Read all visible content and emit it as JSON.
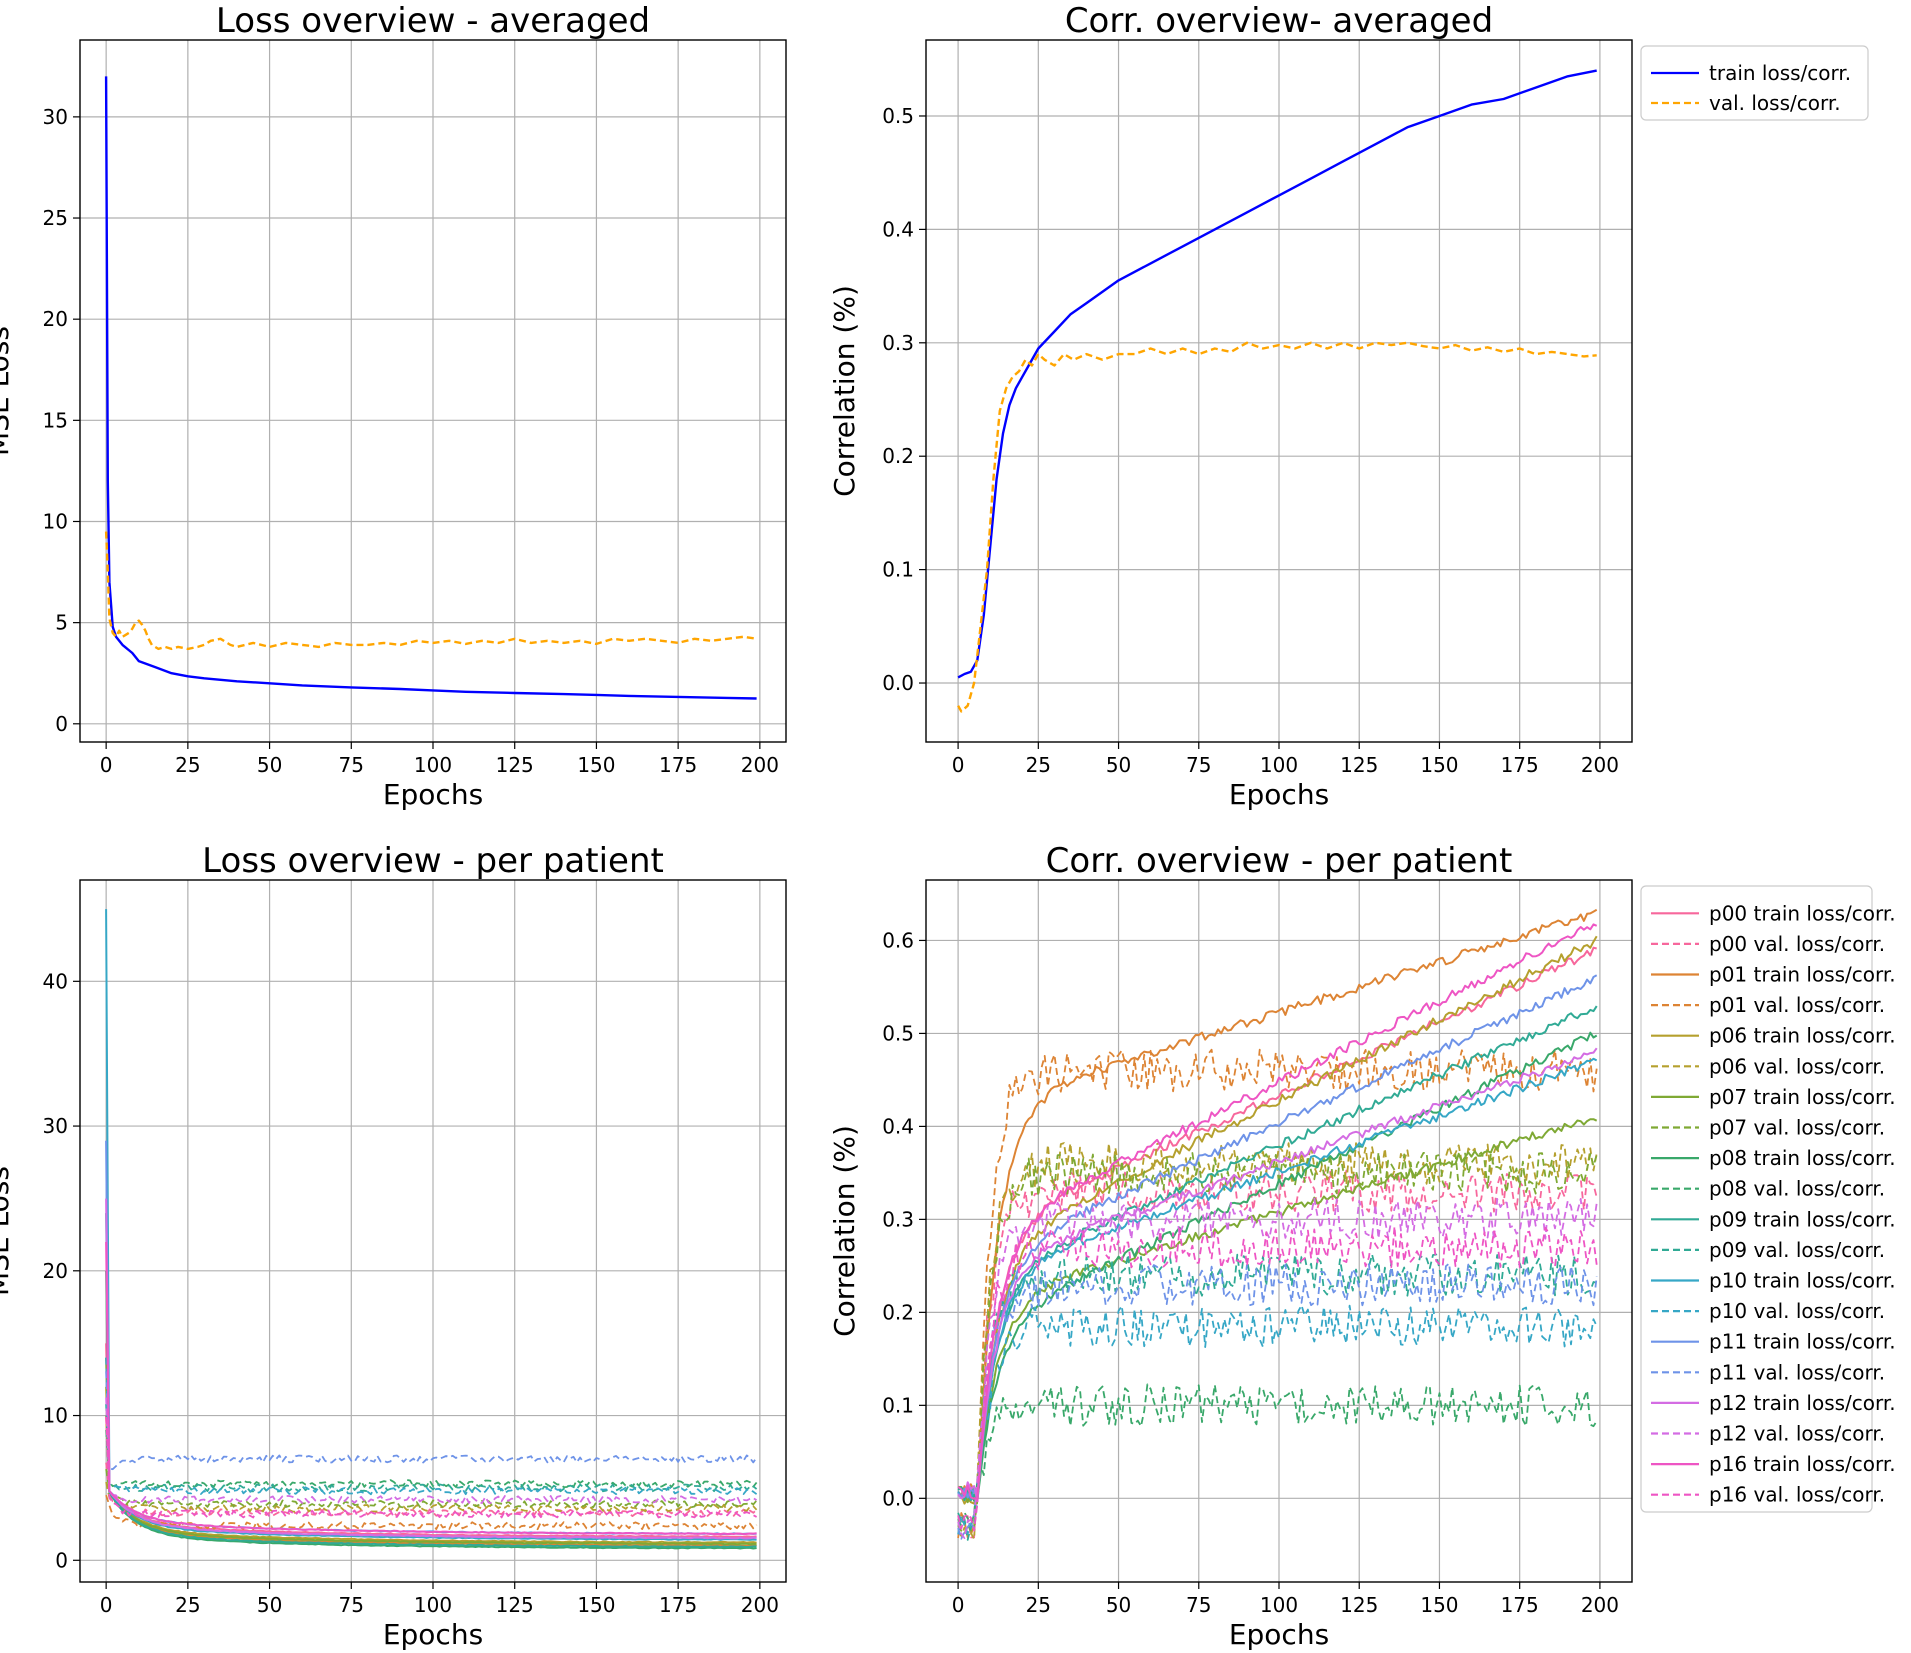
{
  "chart_data": [
    {
      "id": "loss_avg",
      "type": "line",
      "title": "Loss overview - averaged",
      "xlabel": "Epochs",
      "ylabel": "MSE Loss",
      "xlim": [
        -8,
        208
      ],
      "ylim": [
        -0.9,
        33.8
      ],
      "xticks": [
        0,
        25,
        50,
        75,
        100,
        125,
        150,
        175,
        200
      ],
      "yticks": [
        0,
        5,
        10,
        15,
        20,
        25,
        30
      ],
      "grid": true,
      "legend": "none",
      "series": [
        {
          "key": "train",
          "color": "#0000ff",
          "style": "solid",
          "x": [
            0,
            0.5,
            1,
            2,
            3,
            5,
            8,
            10,
            15,
            20,
            25,
            30,
            40,
            50,
            60,
            75,
            90,
            100,
            110,
            125,
            140,
            150,
            160,
            175,
            190,
            199
          ],
          "y": [
            32.0,
            12.0,
            7.0,
            4.8,
            4.3,
            3.9,
            3.5,
            3.1,
            2.8,
            2.5,
            2.35,
            2.25,
            2.1,
            2.0,
            1.9,
            1.8,
            1.72,
            1.65,
            1.58,
            1.52,
            1.47,
            1.43,
            1.38,
            1.33,
            1.28,
            1.25
          ]
        },
        {
          "key": "val",
          "color": "#ffa500",
          "style": "dashed",
          "x": [
            0,
            0.5,
            1,
            2,
            3,
            4,
            5,
            6,
            7,
            8,
            9,
            10,
            11,
            12,
            13,
            14,
            15,
            16,
            18,
            20,
            22,
            25,
            28,
            30,
            32,
            35,
            38,
            40,
            45,
            50,
            55,
            60,
            65,
            70,
            75,
            80,
            85,
            90,
            95,
            100,
            105,
            110,
            115,
            120,
            125,
            130,
            135,
            140,
            145,
            150,
            155,
            160,
            165,
            170,
            175,
            180,
            185,
            190,
            195,
            199
          ],
          "y": [
            9.5,
            7.5,
            5.2,
            4.5,
            4.3,
            4.6,
            4.3,
            4.4,
            4.5,
            4.7,
            5.0,
            5.1,
            4.9,
            4.6,
            4.2,
            3.9,
            3.8,
            3.7,
            3.8,
            3.7,
            3.8,
            3.7,
            3.8,
            3.9,
            4.1,
            4.2,
            3.9,
            3.8,
            4.0,
            3.8,
            4.0,
            3.9,
            3.8,
            4.0,
            3.9,
            3.9,
            4.0,
            3.9,
            4.1,
            4.0,
            4.1,
            3.95,
            4.1,
            4.0,
            4.2,
            4.0,
            4.1,
            4.0,
            4.1,
            3.95,
            4.2,
            4.1,
            4.2,
            4.1,
            4.0,
            4.2,
            4.1,
            4.2,
            4.3,
            4.2
          ]
        }
      ]
    },
    {
      "id": "corr_avg",
      "type": "line",
      "title": "Corr. overview- averaged",
      "xlabel": "Epochs",
      "ylabel": "Correlation (%)",
      "xlim": [
        -10,
        210
      ],
      "ylim": [
        -0.052,
        0.567
      ],
      "xticks": [
        0,
        25,
        50,
        75,
        100,
        125,
        150,
        175,
        200
      ],
      "yticks": [
        0.0,
        0.1,
        0.2,
        0.3,
        0.4,
        0.5
      ],
      "grid": true,
      "legend": "outside-upper-right",
      "series": [
        {
          "key": "train",
          "name": "train loss/corr.",
          "color": "#0000ff",
          "style": "solid",
          "x": [
            0,
            2,
            4,
            6,
            8,
            10,
            12,
            14,
            16,
            18,
            20,
            22,
            25,
            30,
            35,
            40,
            50,
            60,
            70,
            80,
            90,
            100,
            110,
            120,
            130,
            140,
            150,
            160,
            170,
            180,
            190,
            199
          ],
          "y": [
            0.005,
            0.008,
            0.01,
            0.02,
            0.06,
            0.12,
            0.18,
            0.22,
            0.245,
            0.26,
            0.27,
            0.28,
            0.295,
            0.31,
            0.325,
            0.335,
            0.355,
            0.37,
            0.385,
            0.4,
            0.415,
            0.43,
            0.445,
            0.46,
            0.475,
            0.49,
            0.5,
            0.51,
            0.515,
            0.525,
            0.535,
            0.54
          ]
        },
        {
          "key": "val",
          "name": "val. loss/corr.",
          "color": "#ffa500",
          "style": "dashed",
          "x": [
            0,
            1,
            3,
            5,
            7,
            9,
            11,
            13,
            15,
            17,
            19,
            21,
            23,
            25,
            27,
            30,
            33,
            36,
            40,
            45,
            50,
            55,
            60,
            65,
            70,
            75,
            80,
            85,
            90,
            95,
            100,
            105,
            110,
            115,
            120,
            125,
            130,
            135,
            140,
            145,
            150,
            155,
            160,
            165,
            170,
            175,
            180,
            185,
            190,
            195,
            199
          ],
          "y": [
            -0.02,
            -0.025,
            -0.02,
            0.0,
            0.05,
            0.1,
            0.18,
            0.24,
            0.26,
            0.27,
            0.275,
            0.285,
            0.28,
            0.29,
            0.285,
            0.28,
            0.29,
            0.285,
            0.29,
            0.285,
            0.29,
            0.29,
            0.295,
            0.29,
            0.295,
            0.29,
            0.295,
            0.292,
            0.3,
            0.295,
            0.298,
            0.295,
            0.3,
            0.295,
            0.3,
            0.295,
            0.3,
            0.298,
            0.3,
            0.297,
            0.295,
            0.298,
            0.293,
            0.296,
            0.292,
            0.295,
            0.29,
            0.292,
            0.29,
            0.288,
            0.289
          ]
        }
      ]
    },
    {
      "id": "loss_pp",
      "type": "line",
      "title": "Loss overview - per patient",
      "xlabel": "Epochs",
      "ylabel": "MSE Loss",
      "xlim": [
        -8,
        208
      ],
      "ylim": [
        -1.5,
        47.0
      ],
      "xticks": [
        0,
        25,
        50,
        75,
        100,
        125,
        150,
        175,
        200
      ],
      "yticks": [
        0,
        10,
        20,
        30,
        40
      ],
      "grid": true,
      "legend": "none",
      "patients": [
        {
          "id": "p00",
          "color": "#f7679c",
          "peak": 15,
          "train_final": 1.6,
          "val_level": 3.3
        },
        {
          "id": "p01",
          "color": "#dd8434",
          "peak": 10,
          "train_final": 1.0,
          "val_level": 2.4
        },
        {
          "id": "p06",
          "color": "#b5a02e",
          "peak": 12,
          "train_final": 1.2,
          "val_level": 3.6
        },
        {
          "id": "p07",
          "color": "#7fa934",
          "peak": 14,
          "train_final": 1.1,
          "val_level": 3.9
        },
        {
          "id": "p08",
          "color": "#39a86a",
          "peak": 20,
          "train_final": 0.8,
          "val_level": 5.3
        },
        {
          "id": "p09",
          "color": "#30aa95",
          "peak": 24,
          "train_final": 0.9,
          "val_level": 5.0
        },
        {
          "id": "p10",
          "color": "#36a7c6",
          "peak": 45,
          "train_final": 1.4,
          "val_level": 4.8
        },
        {
          "id": "p11",
          "color": "#6e93e8",
          "peak": 29,
          "train_final": 1.8,
          "val_level": 7.0
        },
        {
          "id": "p12",
          "color": "#d46ce3",
          "peak": 25,
          "train_final": 1.5,
          "val_level": 4.2
        },
        {
          "id": "p16",
          "color": "#ee55c4",
          "peak": 22,
          "train_final": 1.8,
          "val_level": 3.2
        }
      ]
    },
    {
      "id": "corr_pp",
      "type": "line",
      "title": "Corr. overview - per patient",
      "xlabel": "Epochs",
      "ylabel": "Correlation (%)",
      "xlim": [
        -10,
        210
      ],
      "ylim": [
        -0.09,
        0.665
      ],
      "xticks": [
        0,
        25,
        50,
        75,
        100,
        125,
        150,
        175,
        200
      ],
      "yticks": [
        0.0,
        0.1,
        0.2,
        0.3,
        0.4,
        0.5,
        0.6
      ],
      "grid": true,
      "legend": "outside-upper-right",
      "legend_suffix_train": "train loss/corr.",
      "legend_suffix_val": "val. loss/corr.",
      "patients": [
        {
          "id": "p00",
          "color": "#f7679c",
          "train_final": 0.59,
          "train_mid": 0.3,
          "val_level": 0.33
        },
        {
          "id": "p01",
          "color": "#dd8434",
          "train_final": 0.63,
          "train_mid": 0.43,
          "val_level": 0.46
        },
        {
          "id": "p06",
          "color": "#b5a02e",
          "train_final": 0.6,
          "train_mid": 0.28,
          "val_level": 0.36
        },
        {
          "id": "p07",
          "color": "#7fa934",
          "train_final": 0.41,
          "train_mid": 0.22,
          "val_level": 0.35
        },
        {
          "id": "p08",
          "color": "#39a86a",
          "train_final": 0.5,
          "train_mid": 0.2,
          "val_level": 0.1
        },
        {
          "id": "p09",
          "color": "#30aa95",
          "train_final": 0.53,
          "train_mid": 0.25,
          "val_level": 0.24
        },
        {
          "id": "p10",
          "color": "#36a7c6",
          "train_final": 0.47,
          "train_mid": 0.25,
          "val_level": 0.185
        },
        {
          "id": "p11",
          "color": "#6e93e8",
          "train_final": 0.56,
          "train_mid": 0.27,
          "val_level": 0.23
        },
        {
          "id": "p12",
          "color": "#d46ce3",
          "train_final": 0.48,
          "train_mid": 0.26,
          "val_level": 0.3
        },
        {
          "id": "p16",
          "color": "#ee55c4",
          "train_final": 0.62,
          "train_mid": 0.3,
          "val_level": 0.27
        }
      ]
    }
  ]
}
